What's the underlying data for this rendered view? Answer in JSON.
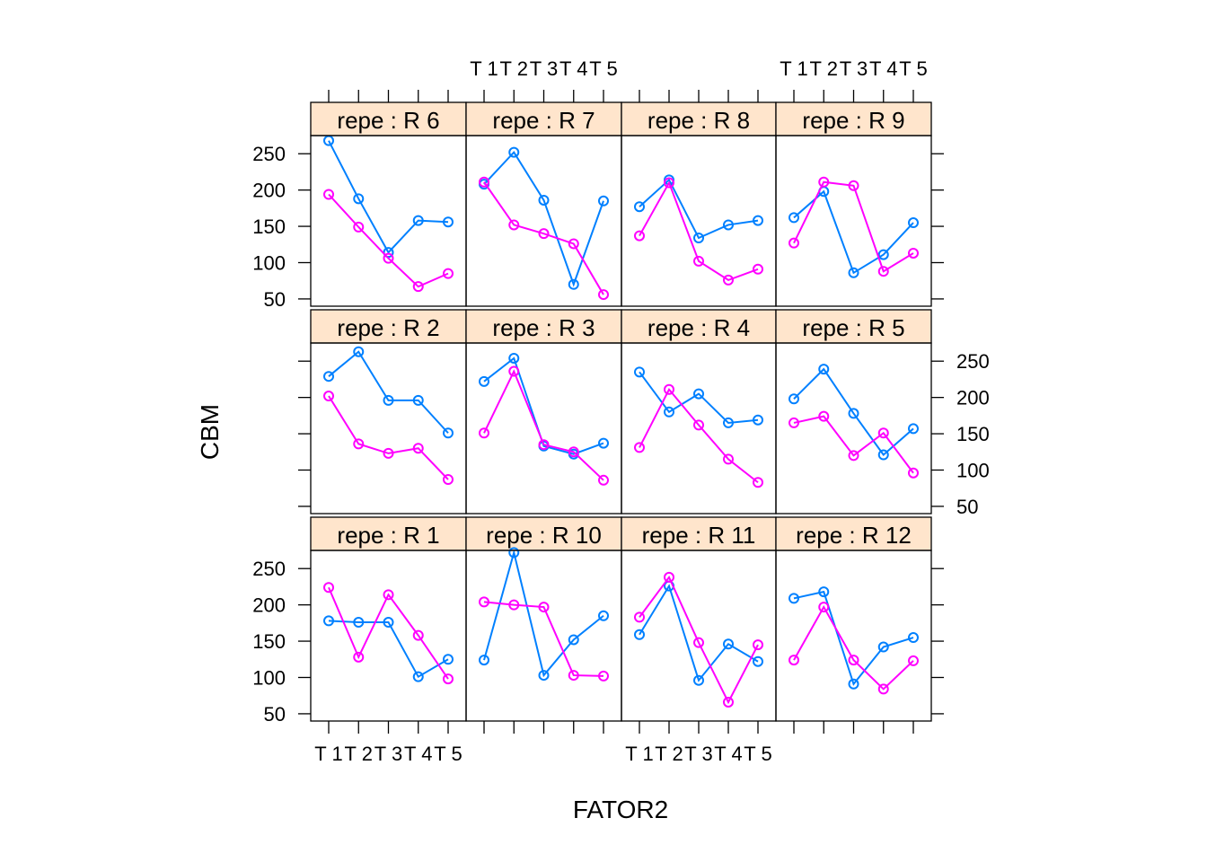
{
  "chart_data": {
    "type": "line",
    "x_title": "FATOR2",
    "y_title": "CBM",
    "x_ticks": [
      "T 1",
      "T 2",
      "T 3",
      "T 4",
      "T 5"
    ],
    "y_ticks": [
      50,
      100,
      150,
      200,
      250
    ],
    "ylim": [
      40,
      275
    ],
    "colors": [
      "#0080ff",
      "#ff00ff"
    ],
    "panels": [
      {
        "strip": "repe : R 1",
        "series": [
          {
            "values": [
              178,
              176,
              176,
              101,
              125
            ]
          },
          {
            "values": [
              224,
              128,
              214,
              158,
              98
            ]
          }
        ]
      },
      {
        "strip": "repe : R 10",
        "series": [
          {
            "values": [
              124,
              272,
              103,
              152,
              185
            ]
          },
          {
            "values": [
              204,
              200,
              197,
              103,
              102
            ]
          }
        ]
      },
      {
        "strip": "repe : R 11",
        "series": [
          {
            "values": [
              159,
              226,
              96,
              146,
              122
            ]
          },
          {
            "values": [
              183,
              238,
              148,
              66,
              145
            ]
          }
        ]
      },
      {
        "strip": "repe : R 12",
        "series": [
          {
            "values": [
              209,
              218,
              91,
              142,
              155
            ]
          },
          {
            "values": [
              124,
              197,
              124,
              84,
              123
            ]
          }
        ]
      },
      {
        "strip": "repe : R 2",
        "series": [
          {
            "values": [
              229,
              263,
              196,
              196,
              151
            ]
          },
          {
            "values": [
              202,
              136,
              123,
              130,
              87
            ]
          }
        ]
      },
      {
        "strip": "repe : R 3",
        "series": [
          {
            "values": [
              222,
              254,
              133,
              122,
              137
            ]
          },
          {
            "values": [
              151,
              236,
              135,
              125,
              86
            ]
          }
        ]
      },
      {
        "strip": "repe : R 4",
        "series": [
          {
            "values": [
              235,
              180,
              205,
              165,
              169
            ]
          },
          {
            "values": [
              131,
              211,
              162,
              115,
              83
            ]
          }
        ]
      },
      {
        "strip": "repe : R 5",
        "series": [
          {
            "values": [
              198,
              239,
              178,
              121,
              157
            ]
          },
          {
            "values": [
              165,
              174,
              120,
              151,
              96
            ]
          }
        ]
      },
      {
        "strip": "repe : R 6",
        "series": [
          {
            "values": [
              268,
              188,
              114,
              158,
              156
            ]
          },
          {
            "values": [
              194,
              149,
              106,
              67,
              85
            ]
          }
        ]
      },
      {
        "strip": "repe : R 7",
        "series": [
          {
            "values": [
              208,
              252,
              186,
              70,
              185
            ]
          },
          {
            "values": [
              211,
              152,
              140,
              126,
              56
            ]
          }
        ]
      },
      {
        "strip": "repe : R 8",
        "series": [
          {
            "values": [
              177,
              214,
              134,
              152,
              158
            ]
          },
          {
            "values": [
              137,
              210,
              102,
              76,
              91
            ]
          }
        ]
      },
      {
        "strip": "repe : R 9",
        "series": [
          {
            "values": [
              162,
              198,
              86,
              111,
              155
            ]
          },
          {
            "values": [
              127,
              211,
              206,
              88,
              113
            ]
          }
        ]
      }
    ]
  }
}
